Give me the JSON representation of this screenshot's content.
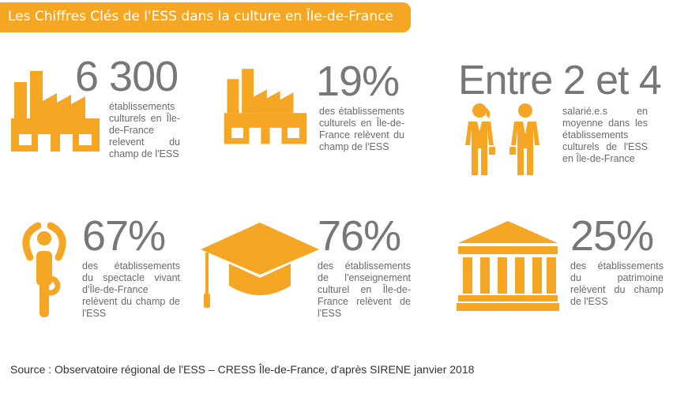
{
  "title": "Les Chiffres Clés de l'ESS dans la culture en Île-de-France",
  "colors": {
    "accent": "#f5a623",
    "number": "#777777",
    "text": "#6a6a6a"
  },
  "stats": [
    {
      "value": "6 300",
      "description": "établissements culturels en Île-de-France relevent du champ de l'ESS",
      "icon": "factory-icon"
    },
    {
      "value": "19%",
      "description": "des établissements culturels en Île-de-France relèvent du champ de l'ESS",
      "icon": "factory-icon"
    },
    {
      "value": "Entre 2 et 4",
      "description": "salarié.e.s en moyenne dans les établissements culturels de l'ESS en Île-de-France",
      "icon": "employees-icon"
    },
    {
      "value": "67%",
      "description": "des établissements du spectacle vivant d'Île-de-France relèvent du champ de l'ESS",
      "icon": "yoga-pose-icon"
    },
    {
      "value": "76%",
      "description": "des établissements de l'enseignement culturel en Île-de-France relèvent de l'ESS",
      "icon": "graduation-cap-icon"
    },
    {
      "value": "25%",
      "description": "des établissements du patrimoine relèvent du champ de l'ESS",
      "icon": "museum-icon"
    }
  ],
  "source": "Source : Observatoire régional de l'ESS – CRESS Île-de-France, d'après SIRENE janvier 2018"
}
